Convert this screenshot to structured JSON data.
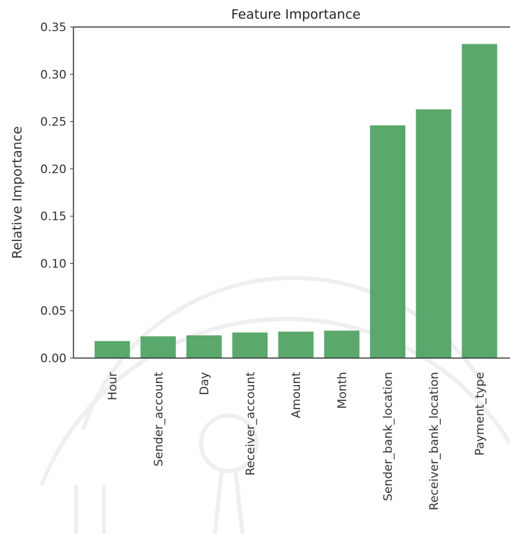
{
  "chart_data": {
    "type": "bar",
    "title": "Feature Importance",
    "xlabel": "",
    "ylabel": "Relative Importance",
    "categories": [
      "Hour",
      "Sender_account",
      "Day",
      "Receiver_account",
      "Amount",
      "Month",
      "Sender_bank_location",
      "Receiver_bank_location",
      "Payment_type"
    ],
    "values": [
      0.018,
      0.023,
      0.024,
      0.027,
      0.028,
      0.029,
      0.246,
      0.263,
      0.332
    ],
    "ylim": [
      0,
      0.35
    ],
    "yticks": [
      "0.00",
      "0.05",
      "0.10",
      "0.15",
      "0.20",
      "0.25",
      "0.30",
      "0.35"
    ],
    "grid": false,
    "bar_color": "#4ca15f"
  }
}
